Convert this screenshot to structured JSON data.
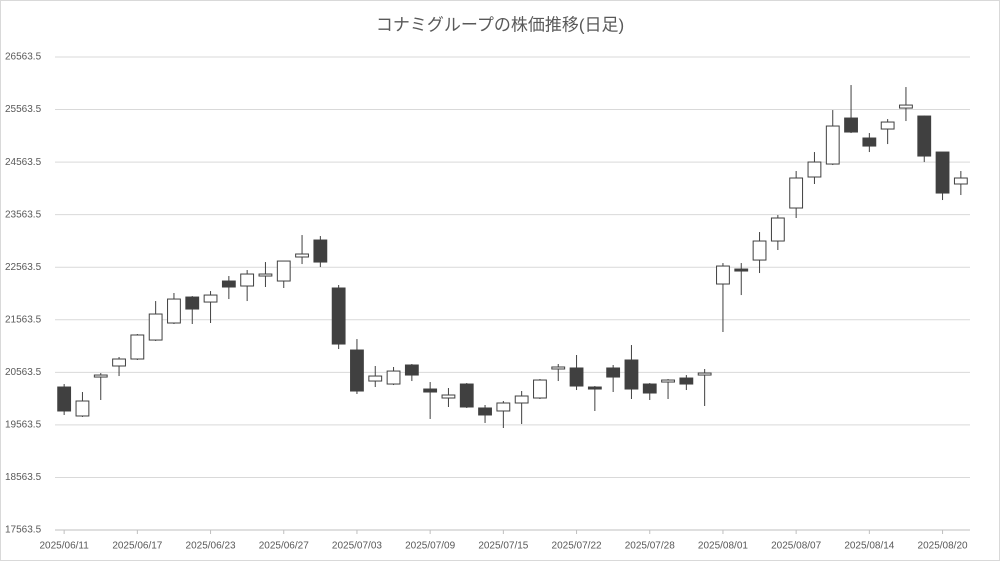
{
  "chart_data": {
    "type": "candlestick",
    "title": "コナミグループの株価推移(日足)",
    "categories": [
      "2025/06/11",
      null,
      null,
      null,
      "2025/06/17",
      null,
      null,
      null,
      "2025/06/23",
      null,
      null,
      null,
      "2025/06/27",
      null,
      null,
      null,
      "2025/07/03",
      null,
      null,
      null,
      "2025/07/09",
      null,
      null,
      null,
      "2025/07/15",
      null,
      null,
      null,
      "2025/07/22",
      null,
      null,
      null,
      "2025/07/28",
      null,
      null,
      null,
      "2025/08/01",
      null,
      null,
      null,
      "2025/08/07",
      null,
      null,
      null,
      "2025/08/14",
      null,
      null,
      null,
      "2025/08/20",
      null
    ],
    "open": [
      20284,
      19733,
      20474,
      20684,
      20817,
      21178,
      21502,
      21996,
      21901,
      22301,
      22206,
      22396,
      22301,
      22758,
      23081,
      22168,
      20988,
      20398,
      20341,
      20703,
      20246,
      20075,
      20341,
      19885,
      19828,
      19980,
      20075,
      20627,
      20646,
      20284,
      20646,
      20798,
      20341,
      20379,
      20455,
      20512,
      22244,
      22529,
      22700,
      23062,
      23690,
      24280,
      24527,
      25402,
      25022,
      25193,
      25592,
      25440,
      24755,
      24147
    ],
    "high": [
      20341,
      20189,
      20550,
      20855,
      21293,
      21920,
      22073,
      22015,
      22110,
      22396,
      22510,
      22662,
      22681,
      23176,
      23157,
      22225,
      21197,
      20684,
      20665,
      20722,
      20379,
      20265,
      20360,
      19942,
      20018,
      20208,
      20436,
      20722,
      20893,
      20303,
      20703,
      21083,
      20360,
      20436,
      20512,
      20627,
      22643,
      22643,
      23233,
      23557,
      24394,
      24755,
      25554,
      26030,
      25117,
      25383,
      25992,
      25450,
      24755,
      24394
    ],
    "low": [
      19752,
      19714,
      20037,
      20493,
      20798,
      21160,
      21483,
      21483,
      21502,
      21958,
      21920,
      22187,
      22168,
      22624,
      22567,
      21007,
      20151,
      20284,
      20322,
      20398,
      19676,
      19904,
      19885,
      19600,
      19504,
      19580,
      20056,
      20398,
      20227,
      19828,
      20189,
      20056,
      20037,
      20056,
      20227,
      19923,
      21331,
      22034,
      22453,
      22891,
      23500,
      24147,
      24508,
      25117,
      24755,
      24907,
      25345,
      24565,
      23842,
      23937
    ],
    "close": [
      19828,
      20018,
      20512,
      20817,
      21274,
      21673,
      21958,
      21768,
      22034,
      22187,
      22434,
      22434,
      22681,
      22815,
      22662,
      21102,
      20208,
      20493,
      20588,
      20512,
      20189,
      20132,
      19904,
      19752,
      19980,
      20113,
      20417,
      20665,
      20303,
      20246,
      20474,
      20246,
      20170,
      20417,
      20341,
      20550,
      22586,
      22491,
      23062,
      23500,
      24261,
      24565,
      25250,
      25136,
      24869,
      25326,
      25649,
      24679,
      23975,
      24261
    ],
    "up_color": "#ffffff",
    "down_color": "#404040",
    "edge_color": "#404040",
    "ylim": [
      17563.5,
      26563.5
    ],
    "yticks": [
      17563.5,
      18563.5,
      19563.5,
      20563.5,
      21563.5,
      22563.5,
      23563.5,
      24563.5,
      25563.5,
      26563.5
    ],
    "grid": true
  }
}
